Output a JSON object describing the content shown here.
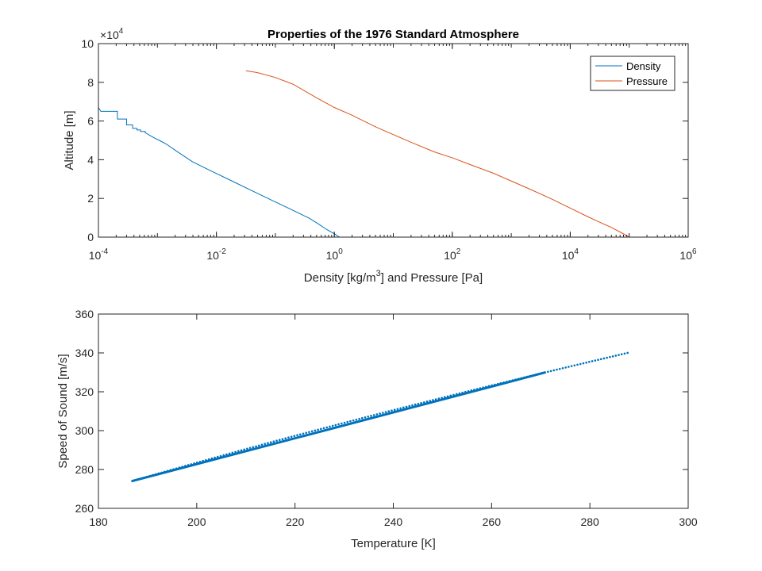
{
  "chart_data": [
    {
      "type": "line",
      "title": "Properties of the 1976 Standard Atmosphere",
      "xlabel_parts": [
        "Density [kg/m",
        "3",
        "] and Pressure [Pa]"
      ],
      "ylabel": "Altitude [m]",
      "x_scale": "log",
      "xlim": [
        0.0001,
        1000000
      ],
      "ylim": [
        0,
        100000
      ],
      "x_ticks": [
        0.0001,
        0.01,
        1,
        100,
        10000,
        1000000
      ],
      "x_tick_labels": [
        {
          "base": "10",
          "exp": "-4"
        },
        {
          "base": "10",
          "exp": "-2"
        },
        {
          "base": "10",
          "exp": "0"
        },
        {
          "base": "10",
          "exp": "2"
        },
        {
          "base": "10",
          "exp": "4"
        },
        {
          "base": "10",
          "exp": "6"
        }
      ],
      "y_ticks": [
        0,
        20000,
        40000,
        60000,
        80000,
        100000
      ],
      "y_tick_labels": [
        "0",
        "2",
        "4",
        "6",
        "8",
        "10"
      ],
      "y_multiplier": {
        "base": "10",
        "exp": "4",
        "prefix": "×"
      },
      "legend": {
        "position": "top-right",
        "entries": [
          "Density",
          "Pressure"
        ]
      },
      "grid": false,
      "series": [
        {
          "name": "Density",
          "color": "#0072BD",
          "points": [
            [
              1.225,
              0
            ],
            [
              1.0,
              1700
            ],
            [
              0.736,
              4000
            ],
            [
              0.526,
              7000
            ],
            [
              0.364,
              10000
            ],
            [
              0.31,
              11000
            ],
            [
              0.194,
              14000
            ],
            [
              0.088,
              19000
            ],
            [
              0.04,
              24000
            ],
            [
              0.0184,
              29000
            ],
            [
              0.0084,
              34000
            ],
            [
              0.0039,
              39000
            ],
            [
              0.00198,
              45000
            ],
            [
              0.00143,
              48000
            ],
            [
              0.00108,
              50000
            ],
            [
              0.00092,
              51000
            ],
            [
              0.00086,
              51500
            ],
            [
              0.00075,
              52500
            ],
            [
              0.00068,
              53300
            ],
            [
              0.00062,
              54000
            ],
            [
              0.00062,
              54600
            ],
            [
              0.00052,
              54600
            ],
            [
              0.00052,
              55400
            ],
            [
              0.00045,
              55400
            ],
            [
              0.00045,
              56200
            ],
            [
              0.00038,
              56200
            ],
            [
              0.00038,
              58000
            ],
            [
              0.0003,
              58000
            ],
            [
              0.0003,
              61000
            ],
            [
              0.00021,
              61000
            ],
            [
              0.00021,
              65000
            ],
            [
              0.00011,
              65000
            ],
            [
              0.0001,
              67000
            ],
            [
              0.0001,
              72500
            ]
          ]
        },
        {
          "name": "Pressure",
          "color": "#D95319",
          "points": [
            [
              101325,
              0
            ],
            [
              50000,
              5000
            ],
            [
              30000,
              8000
            ],
            [
              20000,
              10500
            ],
            [
              10000,
              15000
            ],
            [
              5000,
              19500
            ],
            [
              2000,
              25000
            ],
            [
              1000,
              29000
            ],
            [
              500,
              33000
            ],
            [
              200,
              37500
            ],
            [
              100,
              41000
            ],
            [
              50,
              44000
            ],
            [
              20,
              49000
            ],
            [
              10,
              53000
            ],
            [
              5,
              57000
            ],
            [
              2,
              63000
            ],
            [
              1,
              67000
            ],
            [
              0.5,
              72000
            ],
            [
              0.2,
              79000
            ],
            [
              0.1,
              82500
            ],
            [
              0.05,
              85000
            ],
            [
              0.0316,
              86000
            ]
          ]
        }
      ]
    },
    {
      "type": "scatter",
      "title": "",
      "xlabel": "Temperature [K]",
      "ylabel": "Speed of Sound [m/s]",
      "xlim": [
        180,
        300
      ],
      "ylim": [
        260,
        360
      ],
      "x_ticks": [
        180,
        200,
        220,
        240,
        260,
        280,
        300
      ],
      "x_tick_labels": [
        "180",
        "200",
        "220",
        "240",
        "260",
        "280",
        "300"
      ],
      "y_ticks": [
        260,
        280,
        300,
        320,
        340,
        360
      ],
      "y_tick_labels": [
        "260",
        "280",
        "300",
        "320",
        "340",
        "360"
      ],
      "grid": false,
      "series": [
        {
          "color": "#0072BD",
          "relation": "c = sqrt(1.4 * 287.053 * T)",
          "t_range": [
            186.87,
            288.15
          ],
          "t_step": 0.6
        }
      ]
    }
  ]
}
